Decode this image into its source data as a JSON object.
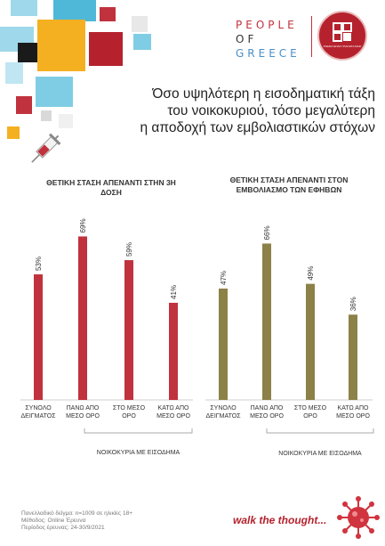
{
  "logo": {
    "lines": [
      "PEOPLE",
      "OF",
      "GREECE"
    ],
    "badge_text": "ΣΧΕΔΙΟ ΕΝΑΣ ΠΛΑΝΗΤΑ ΜΑΖΙ"
  },
  "headline": [
    "Όσο υψηλότερη η εισοδηματική τάξη",
    "του νοικοκυριού, τόσο μεγαλύτερη",
    "η αποδοχή των εμβολιαστικών στόχων"
  ],
  "chart_data": [
    {
      "type": "bar",
      "title": [
        "ΘΕΤΙΚΗ ΣΤΑΣΗ ΑΠΕΝΑΝΤΙ ΣΤΗΝ 3Η",
        "ΔΟΣΗ"
      ],
      "categories": [
        [
          "ΣΥΝΟΛΟ",
          "ΔΕΙΓΜΑΤΟΣ"
        ],
        [
          "ΠΑΝΩ ΑΠΟ",
          "ΜΕΣΟ ΟΡΟ"
        ],
        [
          "ΣΤΟ ΜΕΣΟ",
          "ΟΡΟ"
        ],
        [
          "ΚΑΤΩ ΑΠΟ",
          "ΜΕΣΟ ΟΡΟ"
        ]
      ],
      "values": [
        53,
        69,
        59,
        41
      ],
      "data_labels": [
        "53%",
        "69%",
        "59%",
        "41%"
      ],
      "group_label": "ΝΟΙΚΟΚΥΡΙΑ ΜΕ ΕΙΣΟΔΗΜΑ",
      "color": "#c0323d",
      "ylim": [
        0,
        100
      ]
    },
    {
      "type": "bar",
      "title": [
        "ΘΕΤΙΚΗ ΣΤΑΣΗ ΑΠΕΝΑΝΤΙ ΣΤΟΝ",
        "ΕΜΒΟΛΙΑΣΜΟ ΤΩΝ ΕΦΗΒΩΝ"
      ],
      "categories": [
        [
          "ΣΥΝΟΛΟ",
          "ΔΕΙΓΜΑΤΟΣ"
        ],
        [
          "ΠΑΝΩ ΑΠΟ",
          "ΜΕΣΟ ΟΡΟ"
        ],
        [
          "ΣΤΟ ΜΕΣΟ",
          "ΟΡΟ"
        ],
        [
          "ΚΑΤΩ ΑΠΟ",
          "ΜΕΣΟ ΟΡΟ"
        ]
      ],
      "values": [
        47,
        66,
        49,
        36
      ],
      "data_labels": [
        "47%",
        "66%",
        "49%",
        "36%"
      ],
      "group_label": "ΝΟΙΚΟΚΥΡΙΑ ΜΕ ΕΙΣΟΔΗΜΑ",
      "color": "#8c8147",
      "ylim": [
        0,
        100
      ]
    }
  ],
  "footnote": [
    "Πανελλαδικό δείγμα: n=1009 σε ηλικίες 18+",
    "Μέθοδος: Online Έρευνα",
    "Περίοδος έρευνας: 24-30/9/2021"
  ],
  "tagline": "walk the thought..."
}
